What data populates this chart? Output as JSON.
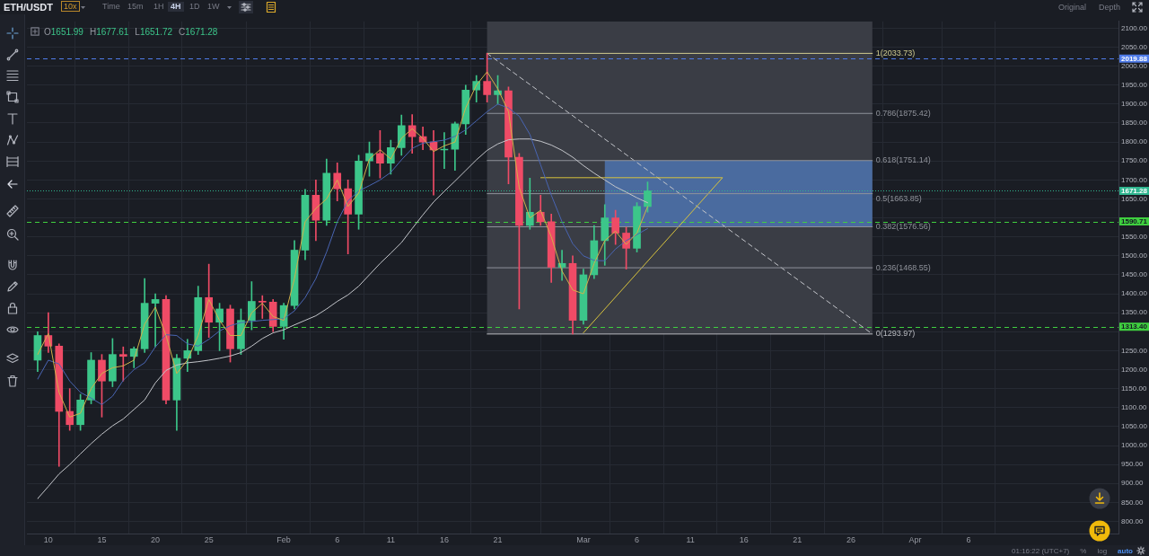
{
  "chart_data": {
    "type": "candlestick",
    "title": "ETH/USDT",
    "x": [
      "--01-09",
      "--01-10",
      "--01-11",
      "--01-12",
      "--01-13",
      "--01-14",
      "--01-15",
      "--01-16",
      "--01-17",
      "--01-18",
      "--01-19",
      "--01-20",
      "--01-21",
      "--01-22",
      "--01-23",
      "--01-24",
      "--01-25",
      "--01-26",
      "--01-27",
      "--01-28",
      "--01-29",
      "--01-30",
      "--01-31",
      "--02-01",
      "--02-02",
      "--02-03",
      "--02-04",
      "--02-05",
      "--02-06",
      "--02-07",
      "--02-08",
      "--02-09",
      "--02-10",
      "--02-11",
      "--02-12",
      "--02-13",
      "--02-14",
      "--02-15",
      "--02-16",
      "--02-17",
      "--02-18",
      "--02-19",
      "--02-20",
      "--02-21",
      "--02-22",
      "--02-23",
      "--02-24",
      "--02-25",
      "--02-26",
      "--02-27",
      "--02-28",
      "--03-01",
      "--03-02",
      "--03-03",
      "--03-04",
      "--03-05",
      "--03-06",
      "--03-07"
    ],
    "ohlc": [
      [
        1225,
        1300,
        1195,
        1290
      ],
      [
        1290,
        1350,
        1245,
        1262
      ],
      [
        1262,
        1268,
        945,
        1090
      ],
      [
        1090,
        1150,
        1040,
        1055
      ],
      [
        1055,
        1135,
        1040,
        1120
      ],
      [
        1120,
        1245,
        1110,
        1225
      ],
      [
        1225,
        1240,
        1075,
        1170
      ],
      [
        1170,
        1282,
        1155,
        1240
      ],
      [
        1240,
        1260,
        1170,
        1235
      ],
      [
        1235,
        1260,
        1205,
        1255
      ],
      [
        1255,
        1440,
        1245,
        1375
      ],
      [
        1375,
        1400,
        1260,
        1385
      ],
      [
        1385,
        1395,
        1110,
        1120
      ],
      [
        1120,
        1240,
        1040,
        1230
      ],
      [
        1230,
        1280,
        1195,
        1250
      ],
      [
        1250,
        1420,
        1240,
        1390
      ],
      [
        1390,
        1478,
        1285,
        1325
      ],
      [
        1325,
        1375,
        1250,
        1360
      ],
      [
        1360,
        1370,
        1220,
        1255
      ],
      [
        1255,
        1360,
        1240,
        1330
      ],
      [
        1330,
        1432,
        1305,
        1380
      ],
      [
        1380,
        1395,
        1335,
        1378
      ],
      [
        1378,
        1385,
        1300,
        1314
      ],
      [
        1314,
        1375,
        1280,
        1369
      ],
      [
        1369,
        1540,
        1360,
        1515
      ],
      [
        1515,
        1675,
        1490,
        1660
      ],
      [
        1660,
        1700,
        1540,
        1594
      ],
      [
        1594,
        1755,
        1580,
        1718
      ],
      [
        1718,
        1745,
        1645,
        1677
      ],
      [
        1677,
        1700,
        1505,
        1610
      ],
      [
        1610,
        1765,
        1570,
        1750
      ],
      [
        1750,
        1800,
        1710,
        1770
      ],
      [
        1770,
        1830,
        1705,
        1744
      ],
      [
        1744,
        1805,
        1715,
        1785
      ],
      [
        1785,
        1871,
        1765,
        1843
      ],
      [
        1843,
        1872,
        1770,
        1814
      ],
      [
        1814,
        1840,
        1780,
        1800
      ],
      [
        1800,
        1830,
        1660,
        1779
      ],
      [
        1779,
        1825,
        1730,
        1781
      ],
      [
        1781,
        1853,
        1725,
        1848
      ],
      [
        1848,
        1950,
        1820,
        1937
      ],
      [
        1937,
        1975,
        1905,
        1960
      ],
      [
        1960,
        2033.73,
        1905,
        1925
      ],
      [
        1925,
        1975,
        1900,
        1935
      ],
      [
        1935,
        1945,
        1690,
        1760
      ],
      [
        1760,
        1770,
        1360,
        1580
      ],
      [
        1580,
        1705,
        1570,
        1615
      ],
      [
        1615,
        1660,
        1580,
        1590
      ],
      [
        1590,
        1610,
        1430,
        1470
      ],
      [
        1470,
        1515,
        1435,
        1480
      ],
      [
        1480,
        1500,
        1293.97,
        1330
      ],
      [
        1330,
        1465,
        1320,
        1450
      ],
      [
        1450,
        1580,
        1440,
        1540
      ],
      [
        1540,
        1635,
        1475,
        1600
      ],
      [
        1600,
        1620,
        1530,
        1560
      ],
      [
        1560,
        1575,
        1465,
        1520
      ],
      [
        1520,
        1640,
        1510,
        1630
      ],
      [
        1630,
        1695,
        1615,
        1671.28
      ]
    ],
    "colors": [
      "#3cc68a",
      "#ef4b66",
      "#ef4b66",
      "#ef4b66",
      "#3cc68a",
      "#3cc68a",
      "#ef4b66",
      "#3cc68a",
      "#ef4b66",
      "#3cc68a",
      "#3cc68a",
      "#3cc68a",
      "#ef4b66",
      "#3cc68a",
      "#3cc68a",
      "#3cc68a",
      "#ef4b66",
      "#3cc68a",
      "#ef4b66",
      "#3cc68a",
      "#3cc68a",
      "#ef4b66",
      "#ef4b66",
      "#3cc68a",
      "#3cc68a",
      "#3cc68a",
      "#ef4b66",
      "#3cc68a",
      "#ef4b66",
      "#ef4b66",
      "#3cc68a",
      "#3cc68a",
      "#ef4b66",
      "#3cc68a",
      "#3cc68a",
      "#ef4b66",
      "#ef4b66",
      "#ef4b66",
      "#3cc68a",
      "#3cc68a",
      "#3cc68a",
      "#3cc68a",
      "#ef4b66",
      "#3cc68a",
      "#ef4b66",
      "#ef4b66",
      "#3cc68a",
      "#ef4b66",
      "#ef4b66",
      "#3cc68a",
      "#ef4b66",
      "#3cc68a",
      "#3cc68a",
      "#3cc68a",
      "#ef4b66",
      "#ef4b66",
      "#3cc68a",
      "#3cc68a"
    ],
    "series": [
      {
        "type": "line",
        "color": "#d1b04a",
        "values": [
          1240,
          1295,
          1140,
          1075,
          1085,
          1150,
          1190,
          1205,
          1210,
          1225,
          1320,
          1365,
          1290,
          1190,
          1225,
          1290,
          1385,
          1330,
          1290,
          1290,
          1350,
          1375,
          1340,
          1330,
          1440,
          1590,
          1625,
          1650,
          1700,
          1630,
          1665,
          1755,
          1780,
          1755,
          1810,
          1835,
          1810,
          1775,
          1790,
          1800,
          1890,
          1950,
          1985,
          1940,
          1880,
          1680,
          1600,
          1620,
          1550,
          1460,
          1410,
          1400,
          1480,
          1540,
          1565,
          1530,
          1560,
          1630
        ]
      },
      {
        "type": "line",
        "color": "#4965b3",
        "values": [
          1175,
          1225,
          1215,
          1170,
          1140,
          1125,
          1108,
          1130,
          1172,
          1200,
          1218,
          1260,
          1292,
          1290,
          1268,
          1262,
          1280,
          1302,
          1316,
          1324,
          1327,
          1330,
          1332,
          1334,
          1355,
          1390,
          1440,
          1510,
          1590,
          1645,
          1671,
          1685,
          1700,
          1720,
          1753,
          1783,
          1797,
          1801,
          1805,
          1815,
          1832,
          1856,
          1880,
          1900,
          1890,
          1868,
          1820,
          1740,
          1660,
          1590,
          1532,
          1500,
          1488,
          1487,
          1518,
          1540,
          1556,
          1572
        ]
      },
      {
        "type": "line",
        "color": "#c3c5ca",
        "values": [
          860,
          892,
          925,
          950,
          978,
          1005,
          1030,
          1052,
          1070,
          1095,
          1120,
          1165,
          1198,
          1212,
          1218,
          1221,
          1225,
          1230,
          1236,
          1245,
          1262,
          1282,
          1297,
          1305,
          1318,
          1330,
          1342,
          1360,
          1380,
          1397,
          1420,
          1450,
          1480,
          1507,
          1535,
          1572,
          1608,
          1642,
          1670,
          1697,
          1725,
          1753,
          1778,
          1795,
          1806,
          1808,
          1808,
          1802,
          1792,
          1778,
          1760,
          1738,
          1718,
          1700,
          1682,
          1668,
          1653,
          1640
        ]
      },
      {
        "type": "area",
        "color": "#3a3d45",
        "x": [
          "--02-20",
          "--03-28"
        ],
        "values": [
          null,
          null
        ],
        "lower": [
          1293.97,
          1293.97
        ],
        "upper": [
          2118,
          2118
        ]
      },
      {
        "type": "area",
        "color": "#4a6b9f",
        "x": [
          "--03-03",
          "--03-28"
        ],
        "values": [
          null,
          null
        ],
        "lower": [
          1577,
          1577
        ],
        "upper": [
          1751,
          1751
        ]
      },
      {
        "type": "line",
        "name": "1(2033.73)",
        "color": "#cfcb8f",
        "x": [
          "--02-20",
          "--03-28"
        ],
        "values": [
          2033.73,
          2033.73
        ]
      },
      {
        "type": "line",
        "name": "0.786(1875.42)",
        "color": "#8f929a",
        "x": [
          "--02-20",
          "--03-28"
        ],
        "values": [
          1875.42,
          1875.42
        ]
      },
      {
        "type": "line",
        "name": "0.618(1751.14)",
        "color": "#8f929a",
        "x": [
          "--02-20",
          "--03-28"
        ],
        "values": [
          1751.14,
          1751.14
        ]
      },
      {
        "type": "line",
        "name": "0.5(1663.85)",
        "color": "#8f929a",
        "x": [
          "--02-20",
          "--03-28"
        ],
        "values": [
          1663.85,
          1663.85
        ]
      },
      {
        "type": "line",
        "name": "0.382(1576.56)",
        "color": "#8f929a",
        "x": [
          "--02-20",
          "--03-28"
        ],
        "values": [
          1576.56,
          1576.56
        ]
      },
      {
        "type": "line",
        "name": "0.236(1468.55)",
        "color": "#8f929a",
        "x": [
          "--02-20",
          "--03-28"
        ],
        "values": [
          1468.55,
          1468.55
        ]
      },
      {
        "type": "line",
        "name": "0(1293.97)",
        "color": "#b9bbc0",
        "x": [
          "--02-20",
          "--03-28"
        ],
        "values": [
          1293.97,
          1293.97
        ]
      },
      {
        "type": "line",
        "color": "#d8c33d",
        "x": [
          "--02-25",
          "--03-14",
          "--03-01"
        ],
        "values": [
          1706,
          1706,
          1297
        ]
      },
      {
        "type": "line",
        "color": "#c3c5ca",
        "line_style": "dashed",
        "x": [
          "--02-20",
          "--03-28"
        ],
        "values": [
          2033.73,
          1293.97
        ]
      }
    ],
    "ref_lines": [
      {
        "axis": "y",
        "value": 2019.88,
        "label": "2019.88",
        "color": "#4f7be8",
        "line_style": "dashed"
      },
      {
        "axis": "y",
        "value": 1671.28,
        "label": "1671.28",
        "color": "#2fb58f",
        "line_style": "dotted"
      },
      {
        "axis": "y",
        "value": 1590.71,
        "label": "1590.71",
        "color": "#3fcf3f",
        "line_style": "dashed"
      },
      {
        "axis": "y",
        "value": 1313.4,
        "label": "1313.40",
        "color": "#3fcf3f",
        "line_style": "dashed"
      }
    ],
    "xlim": [
      "--01-08",
      "--04-20"
    ],
    "xticks": [
      {
        "value": "--01-10",
        "label": "10"
      },
      {
        "value": "--01-15",
        "label": "15"
      },
      {
        "value": "--01-20",
        "label": "20"
      },
      {
        "value": "--01-25",
        "label": "25"
      },
      {
        "value": "--02-01",
        "label": "Feb"
      },
      {
        "value": "--02-06",
        "label": "6"
      },
      {
        "value": "--02-11",
        "label": "11"
      },
      {
        "value": "--02-16",
        "label": "16"
      },
      {
        "value": "--02-21",
        "label": "21"
      },
      {
        "value": "--03-01",
        "label": "Mar"
      },
      {
        "value": "--03-06",
        "label": "6"
      },
      {
        "value": "--03-11",
        "label": "11"
      },
      {
        "value": "--03-16",
        "label": "16"
      },
      {
        "value": "--03-21",
        "label": "21"
      },
      {
        "value": "--03-26",
        "label": "26"
      },
      {
        "value": "--04-01",
        "label": "Apr"
      },
      {
        "value": "--04-06",
        "label": "6"
      }
    ],
    "ylim": [
      768,
      2118
    ],
    "yticks": [
      {
        "value": 800,
        "label": "800.00"
      },
      {
        "value": 850,
        "label": "850.00"
      },
      {
        "value": 900,
        "label": "900.00"
      },
      {
        "value": 950,
        "label": "950.00"
      },
      {
        "value": 1000,
        "label": "1000.00"
      },
      {
        "value": 1050,
        "label": "1050.00"
      },
      {
        "value": 1100,
        "label": "1100.00"
      },
      {
        "value": 1150,
        "label": "1150.00"
      },
      {
        "value": 1200,
        "label": "1200.00"
      },
      {
        "value": 1250,
        "label": "1250.00"
      },
      {
        "value": 1300,
        "label": null
      },
      {
        "value": 1350,
        "label": "1350.00"
      },
      {
        "value": 1400,
        "label": "1400.00"
      },
      {
        "value": 1450,
        "label": "1450.00"
      },
      {
        "value": 1500,
        "label": "1500.00"
      },
      {
        "value": 1550,
        "label": "1550.00"
      },
      {
        "value": 1600,
        "label": null
      },
      {
        "value": 1650,
        "label": "1650.00"
      },
      {
        "value": 1700,
        "label": "1700.00"
      },
      {
        "value": 1750,
        "label": "1750.00"
      },
      {
        "value": 1800,
        "label": "1800.00"
      },
      {
        "value": 1850,
        "label": "1850.00"
      },
      {
        "value": 1900,
        "label": "1900.00"
      },
      {
        "value": 1950,
        "label": "1950.00"
      },
      {
        "value": 2000,
        "label": "2000.00"
      },
      {
        "value": 2050,
        "label": "2050.00"
      },
      {
        "value": 2100,
        "label": "2100.00"
      }
    ],
    "grid": true,
    "marker": "none",
    "line_style": "solid",
    "annotations": [
      "10x",
      "Time",
      "15m",
      "1H",
      "4H",
      "1D",
      "1W",
      "Original",
      "Depth",
      "O1651.99",
      "H1677.61",
      "L1651.72",
      "C1671.28",
      "01:16:22 (UTC+7)",
      "%",
      "log",
      "auto"
    ]
  }
}
